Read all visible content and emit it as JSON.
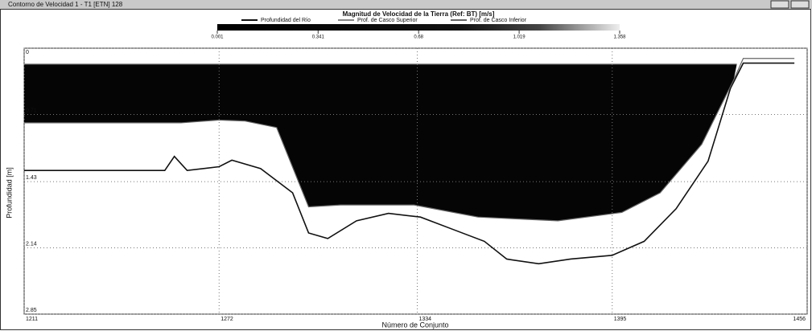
{
  "window": {
    "title": "Contorno de Velocidad 1 - T1 [ETN] 128"
  },
  "chart_data": {
    "type": "line",
    "title": "Magnitud de Velocidad de la Tierra (Ref: BT) [m/s]",
    "xlabel": "Número de Conjunto",
    "ylabel": "Profundidad [m]",
    "xlim": [
      1211,
      1456
    ],
    "xticks": [
      1211,
      1272,
      1334,
      1395,
      1456
    ],
    "ylim": [
      0,
      2.85
    ],
    "yticks": [
      0,
      0.71,
      1.43,
      2.14,
      2.85
    ],
    "y_inverted": true,
    "grid": true,
    "colorbar_ticks": [
      0.001,
      0.341,
      0.68,
      1.019,
      1.358
    ],
    "series": [
      {
        "name": "Profundidad del Río",
        "color": "#111111",
        "x": [
          1211,
          1255,
          1258,
          1262,
          1272,
          1276,
          1285,
          1295,
          1300,
          1306,
          1315,
          1325,
          1335,
          1345,
          1355,
          1362,
          1372,
          1382,
          1395,
          1405,
          1415,
          1425,
          1432,
          1436,
          1452
        ],
        "values": [
          1.31,
          1.31,
          1.16,
          1.31,
          1.27,
          1.2,
          1.29,
          1.55,
          1.98,
          2.04,
          1.85,
          1.77,
          1.81,
          1.94,
          2.07,
          2.26,
          2.31,
          2.26,
          2.22,
          2.07,
          1.72,
          1.21,
          0.43,
          0.16,
          0.16
        ]
      },
      {
        "name": "Prof. de Casco Superior",
        "color": "#888888",
        "x": [
          1211,
          1434
        ],
        "values": [
          0.17,
          0.17
        ]
      },
      {
        "name": "Prof. de Casco Inferior",
        "color": "#666666",
        "x": [
          1211,
          1260,
          1272,
          1280,
          1290,
          1300,
          1310,
          1333,
          1353,
          1378,
          1398,
          1410,
          1423,
          1433,
          1436,
          1452
        ],
        "values": [
          0.8,
          0.8,
          0.77,
          0.78,
          0.85,
          1.7,
          1.68,
          1.68,
          1.81,
          1.85,
          1.76,
          1.55,
          1.03,
          0.34,
          0.11,
          0.11
        ]
      }
    ]
  }
}
